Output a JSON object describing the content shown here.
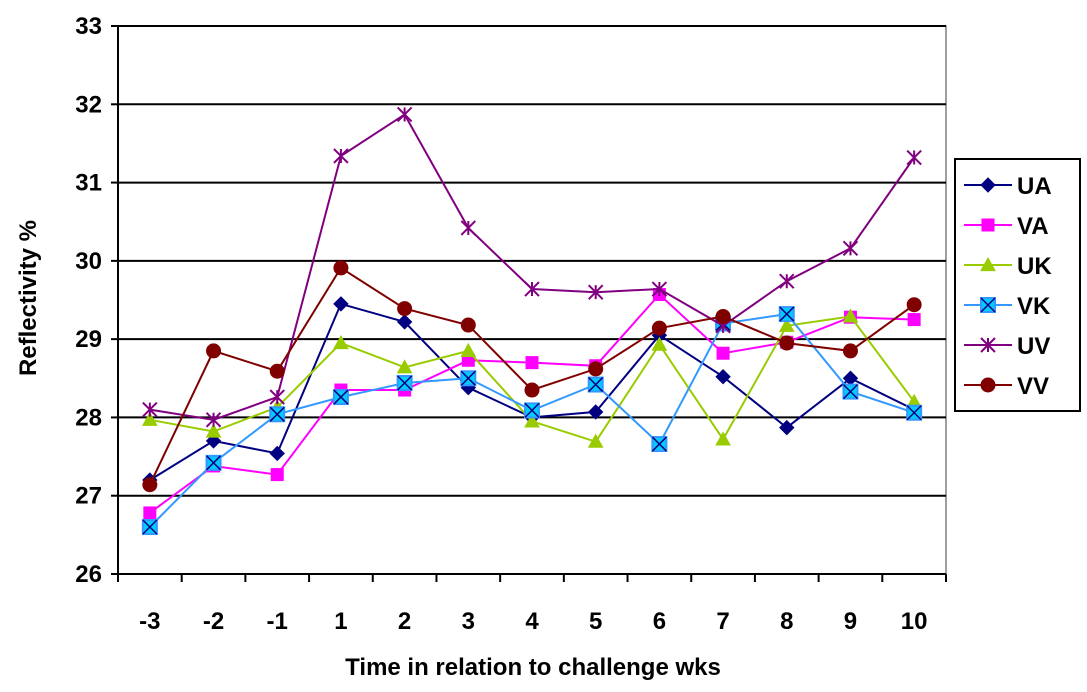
{
  "chart_data": {
    "type": "line",
    "title": "",
    "xlabel": "Time in relation to challenge wks",
    "ylabel": "Reflectivity %",
    "categories": [
      "-3",
      "-2",
      "-1",
      "1",
      "2",
      "3",
      "4",
      "5",
      "6",
      "7",
      "8",
      "9",
      "10"
    ],
    "ylim": [
      26,
      33
    ],
    "yticks": [
      "26",
      "27",
      "28",
      "29",
      "30",
      "31",
      "32",
      "33"
    ],
    "grid": true,
    "legend_position": "right",
    "series": [
      {
        "name": "UA",
        "color": "#000080",
        "marker": "diamond",
        "values": [
          27.2,
          27.7,
          27.54,
          29.45,
          29.22,
          28.38,
          28.0,
          28.07,
          29.05,
          28.52,
          27.87,
          28.5,
          28.1
        ]
      },
      {
        "name": "VA",
        "color": "#FF00FF",
        "marker": "square",
        "values": [
          26.78,
          27.38,
          27.27,
          28.35,
          28.35,
          28.73,
          28.7,
          28.66,
          29.57,
          28.82,
          28.96,
          29.28,
          29.25
        ]
      },
      {
        "name": "UK",
        "color": "#99CC00",
        "marker": "triangle",
        "values": [
          27.97,
          27.82,
          28.13,
          28.95,
          28.64,
          28.85,
          27.95,
          27.69,
          28.93,
          27.72,
          29.17,
          29.29,
          28.2
        ]
      },
      {
        "name": "VK",
        "color": "#3399FF",
        "fill": "#00CCFF",
        "marker": "xsquare",
        "values": [
          26.6,
          27.42,
          28.04,
          28.26,
          28.44,
          28.5,
          28.09,
          28.42,
          27.66,
          29.2,
          29.32,
          28.33,
          28.06
        ]
      },
      {
        "name": "UV",
        "color": "#800080",
        "marker": "star",
        "values": [
          28.1,
          27.97,
          28.26,
          31.34,
          31.87,
          30.42,
          29.64,
          29.6,
          29.64,
          29.17,
          29.74,
          30.16,
          31.32
        ]
      },
      {
        "name": "VV",
        "color": "#800000",
        "marker": "circle",
        "values": [
          27.14,
          28.85,
          28.59,
          29.91,
          29.39,
          29.18,
          28.35,
          28.62,
          29.14,
          29.29,
          28.95,
          28.85,
          29.44
        ]
      }
    ]
  }
}
